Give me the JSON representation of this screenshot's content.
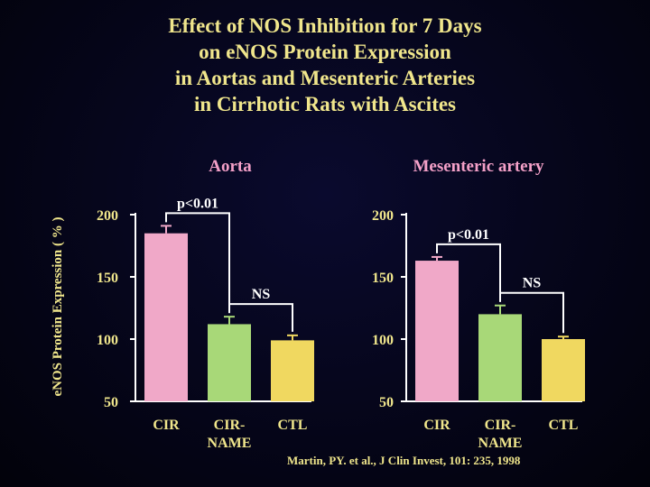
{
  "title_lines": [
    "Effect of NOS Inhibition for 7 Days",
    "on eNOS Protein Expression",
    "in Aortas and Mesenteric Arteries",
    "in Cirrhotic Rats with Ascites"
  ],
  "ylabel": "eNOS Protein Expression ( % )",
  "citation": "Martin, PY. et al., J Clin Invest, 101: 235, 1998",
  "colors": {
    "title": "#f0e68c",
    "panel_title": "#f4a0c8",
    "annotation": "#ffffff",
    "CIR": "#f0a8c8",
    "CIR-NAME": "#a8d878",
    "CTL": "#f0d860",
    "axis": "#ffffff"
  },
  "chart_data": [
    {
      "type": "bar",
      "title": "Aorta",
      "categories": [
        "CIR",
        "CIR-NAME",
        "CTL"
      ],
      "category_label_lines": [
        [
          "CIR"
        ],
        [
          "CIR-",
          "NAME"
        ],
        [
          "CTL"
        ]
      ],
      "values": [
        185,
        112,
        99
      ],
      "error": [
        6,
        6,
        4
      ],
      "ylim": [
        50,
        200
      ],
      "yticks": [
        50,
        100,
        150,
        200
      ],
      "comparisons": [
        {
          "from": 0,
          "to": 1,
          "label": "p<0.01"
        },
        {
          "from": 1,
          "to": 2,
          "label": "NS"
        }
      ]
    },
    {
      "type": "bar",
      "title": "Mesenteric artery",
      "categories": [
        "CIR",
        "CIR-NAME",
        "CTL"
      ],
      "category_label_lines": [
        [
          "CIR"
        ],
        [
          "CIR-",
          "NAME"
        ],
        [
          "CTL"
        ]
      ],
      "values": [
        163,
        120,
        100
      ],
      "error": [
        3,
        7,
        2
      ],
      "ylim": [
        50,
        200
      ],
      "yticks": [
        50,
        100,
        150,
        200
      ],
      "comparisons": [
        {
          "from": 0,
          "to": 1,
          "label": "p<0.01"
        },
        {
          "from": 1,
          "to": 2,
          "label": "NS"
        }
      ]
    }
  ]
}
